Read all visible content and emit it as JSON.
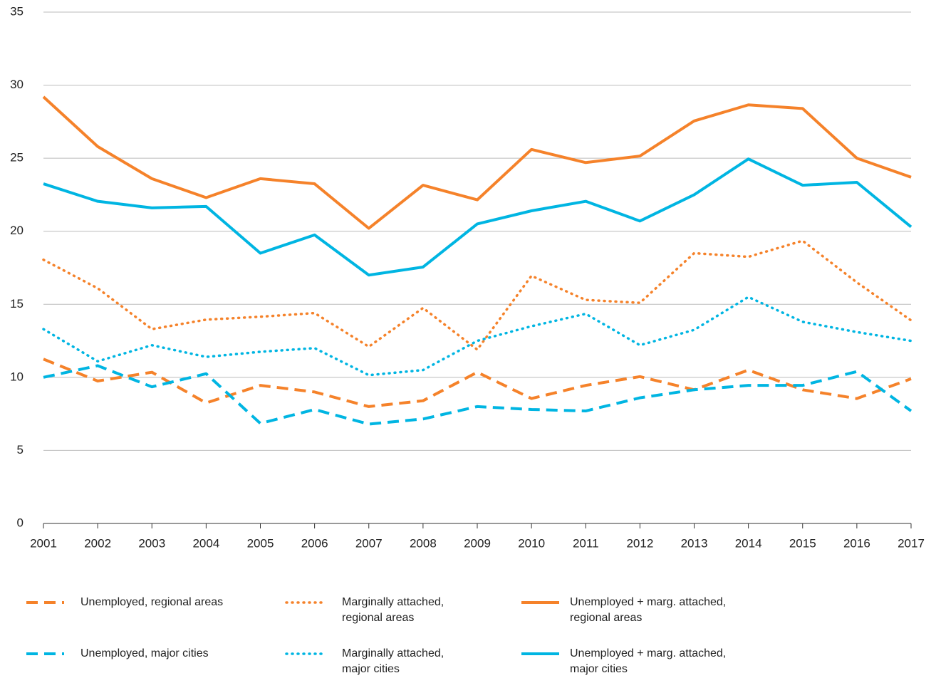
{
  "chart_data": {
    "type": "line",
    "categories": [
      "2001",
      "2002",
      "2003",
      "2004",
      "2005",
      "2006",
      "2007",
      "2008",
      "2009",
      "2010",
      "2011",
      "2012",
      "2013",
      "2014",
      "2015",
      "2016",
      "2017"
    ],
    "ylim": [
      0,
      35
    ],
    "yticks": [
      0,
      5,
      10,
      15,
      20,
      25,
      30,
      35
    ],
    "grid": true,
    "series": [
      {
        "name": "Unemployed, regional areas",
        "color": "#f5822a",
        "dash": "dashed",
        "values": [
          11.25,
          9.75,
          10.35,
          8.25,
          9.45,
          9.0,
          8.0,
          8.4,
          10.35,
          8.55,
          9.45,
          10.05,
          9.15,
          10.5,
          9.15,
          8.55,
          9.9
        ]
      },
      {
        "name": "Marginally attached, regional areas",
        "color": "#f5822a",
        "dash": "dotted",
        "values": [
          18.05,
          16.1,
          13.3,
          13.95,
          14.15,
          14.4,
          12.1,
          14.75,
          11.9,
          16.95,
          15.3,
          15.1,
          18.5,
          18.25,
          19.35,
          16.5,
          13.9
        ]
      },
      {
        "name": "Unemployed + marg. attached, regional areas",
        "color": "#f5822a",
        "dash": "solid",
        "values": [
          29.2,
          25.8,
          23.6,
          22.3,
          23.6,
          23.25,
          20.2,
          23.15,
          22.15,
          25.6,
          24.7,
          25.15,
          27.55,
          28.65,
          28.4,
          25.0,
          23.7
        ]
      },
      {
        "name": "Unemployed, major cities",
        "color": "#00b5e2",
        "dash": "dashed",
        "values": [
          10.0,
          10.8,
          9.35,
          10.25,
          6.85,
          7.8,
          6.8,
          7.15,
          8.0,
          7.8,
          7.7,
          8.6,
          9.15,
          9.45,
          9.45,
          10.4,
          7.7
        ]
      },
      {
        "name": "Marginally attached, major cities",
        "color": "#00b5e2",
        "dash": "dotted",
        "values": [
          13.3,
          11.1,
          12.2,
          11.4,
          11.75,
          12.0,
          10.15,
          10.5,
          12.5,
          13.5,
          14.35,
          12.2,
          13.25,
          15.5,
          13.8,
          13.1,
          12.5
        ]
      },
      {
        "name": "Unemployed + marg. attached, major cities",
        "color": "#00b5e2",
        "dash": "solid",
        "values": [
          23.25,
          22.05,
          21.6,
          21.7,
          18.5,
          19.75,
          17.0,
          17.55,
          20.5,
          21.4,
          22.05,
          20.7,
          22.5,
          24.95,
          23.15,
          23.35,
          20.3
        ]
      }
    ]
  }
}
